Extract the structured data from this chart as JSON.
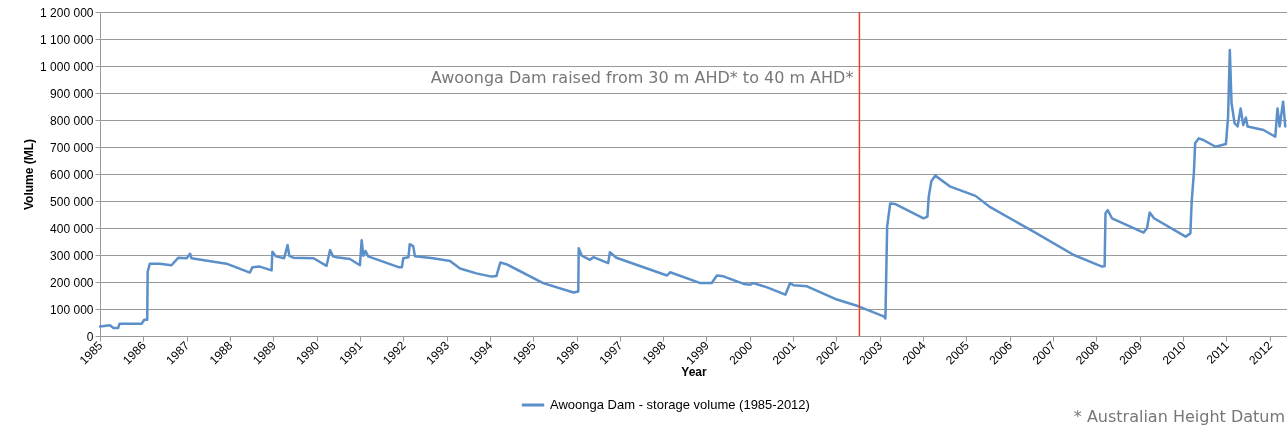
{
  "chart_data": {
    "type": "line",
    "xlabel": "Year",
    "ylabel": "Volume (ML)",
    "xlim": [
      1985,
      2012.4
    ],
    "xticks": [
      1985,
      1986,
      1987,
      1988,
      1989,
      1990,
      1991,
      1992,
      1993,
      1994,
      1995,
      1996,
      1997,
      1998,
      1999,
      2000,
      2001,
      2002,
      2003,
      2004,
      2005,
      2006,
      2007,
      2008,
      2009,
      2010,
      2011,
      2012
    ],
    "ylim": [
      0,
      1200000
    ],
    "yticks": [
      {
        "value": 0,
        "label": "0"
      },
      {
        "value": 100000,
        "label": "100 000"
      },
      {
        "value": 200000,
        "label": "200 000"
      },
      {
        "value": 300000,
        "label": "300 000"
      },
      {
        "value": 400000,
        "label": "400 000"
      },
      {
        "value": 500000,
        "label": "500 000"
      },
      {
        "value": 600000,
        "label": "600 000"
      },
      {
        "value": 700000,
        "label": "700 000"
      },
      {
        "value": 800000,
        "label": "800 000"
      },
      {
        "value": 900000,
        "label": "900 000"
      },
      {
        "value": 1000000,
        "label": "1 000 000"
      },
      {
        "value": 1100000,
        "label": "1 100 000"
      },
      {
        "value": 1200000,
        "label": "1 200 000"
      }
    ],
    "grid": "y",
    "legend": "bottom",
    "marker": "none",
    "line_style": "solid",
    "ref_lines": [
      {
        "axis": "x",
        "value": 2002.53,
        "label": "Awoonga Dam raised from 30 m AHD* to 40 m AHD*",
        "color": "#e8432a"
      }
    ],
    "annotations": [
      "* Australian Height Datum"
    ],
    "series": [
      {
        "name": "Awoonga Dam - storage volume (1985-2012)",
        "color": "#5b8fc9",
        "x": [
          1985.0,
          1985.23,
          1985.31,
          1985.42,
          1985.45,
          1985.96,
          1986.02,
          1986.09,
          1986.1,
          1986.15,
          1986.38,
          1986.65,
          1986.81,
          1987.0,
          1987.08,
          1987.11,
          1987.92,
          1988.46,
          1988.52,
          1988.69,
          1988.96,
          1988.98,
          1989.06,
          1989.25,
          1989.33,
          1989.37,
          1989.46,
          1989.93,
          1990.23,
          1990.31,
          1990.38,
          1990.46,
          1990.77,
          1991.0,
          1991.04,
          1991.08,
          1991.13,
          1991.19,
          1991.89,
          1991.97,
          1992.0,
          1992.12,
          1992.15,
          1992.23,
          1992.27,
          1992.69,
          1993.08,
          1993.31,
          1993.69,
          1994.04,
          1994.15,
          1994.24,
          1994.38,
          1995.23,
          1995.93,
          1996.04,
          1996.05,
          1996.12,
          1996.31,
          1996.39,
          1996.73,
          1996.77,
          1996.92,
          1998.09,
          1998.16,
          1998.86,
          1999.12,
          1999.24,
          1999.39,
          1999.86,
          2000.01,
          2000.08,
          2000.4,
          2000.82,
          2000.93,
          2001.01,
          2001.32,
          2002.01,
          2002.51,
          2003.09,
          2003.13,
          2003.17,
          2003.24,
          2003.35,
          2004.01,
          2004.1,
          2004.13,
          2004.19,
          2004.28,
          2004.63,
          2005.21,
          2005.55,
          2006.48,
          2007.48,
          2008.13,
          2008.19,
          2008.21,
          2008.26,
          2008.36,
          2009.09,
          2009.17,
          2009.23,
          2009.33,
          2010.06,
          2010.17,
          2010.2,
          2010.25,
          2010.28,
          2010.36,
          2010.47,
          2010.75,
          2010.99,
          2011.04,
          2011.08,
          2011.12,
          2011.19,
          2011.26,
          2011.33,
          2011.39,
          2011.45,
          2011.49,
          2011.86,
          2012.13,
          2012.18,
          2012.23,
          2012.31,
          2012.36
        ],
        "values": [
          35000,
          40000,
          30000,
          30000,
          45000,
          45000,
          60000,
          60000,
          238000,
          268000,
          268000,
          262000,
          290000,
          288000,
          305000,
          288000,
          268000,
          235000,
          255000,
          257000,
          243000,
          312000,
          295000,
          288000,
          337000,
          297000,
          290000,
          288000,
          260000,
          318000,
          295000,
          292000,
          285000,
          262000,
          355000,
          297000,
          315000,
          295000,
          255000,
          255000,
          288000,
          292000,
          340000,
          333000,
          295000,
          288000,
          278000,
          250000,
          232000,
          220000,
          222000,
          272000,
          266000,
          196000,
          161000,
          165000,
          325000,
          298000,
          282000,
          292000,
          270000,
          310000,
          290000,
          224000,
          236000,
          196000,
          196000,
          224000,
          221000,
          193000,
          190000,
          196000,
          180000,
          153000,
          196000,
          188000,
          184000,
          135000,
          110000,
          73000,
          65000,
          405000,
          491000,
          489000,
          436000,
          442000,
          516000,
          573000,
          594000,
          553000,
          519000,
          477000,
          393000,
          300000,
          257000,
          258000,
          454000,
          466000,
          436000,
          383000,
          400000,
          457000,
          436000,
          368000,
          380000,
          498000,
          603000,
          714000,
          732000,
          726000,
          701000,
          711000,
          812000,
          1059000,
          862000,
          788000,
          776000,
          843000,
          781000,
          809000,
          776000,
          763000,
          738000,
          843000,
          776000,
          868000,
          776000
        ]
      }
    ]
  }
}
